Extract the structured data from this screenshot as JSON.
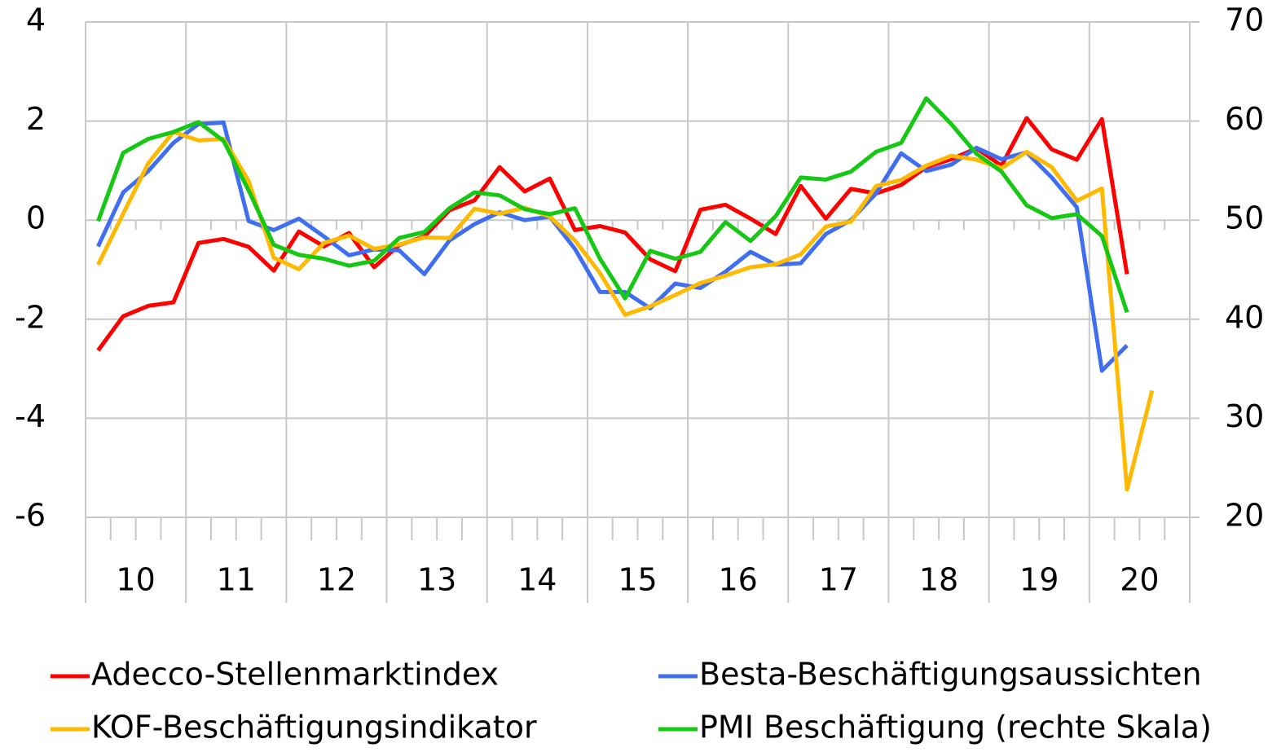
{
  "chart_data": {
    "type": "line",
    "x_labels": [
      "10",
      "11",
      "12",
      "13",
      "14",
      "15",
      "16",
      "17",
      "18",
      "19",
      "20"
    ],
    "ylim": [
      -6,
      4
    ],
    "yticks": [
      -6,
      -4,
      -2,
      0,
      2,
      4
    ],
    "y2lim": [
      20,
      70
    ],
    "y2ticks": [
      20,
      30,
      40,
      50,
      60,
      70
    ],
    "grid": true,
    "legend": "bottom",
    "series": [
      {
        "name": "Adecco-Stellenmarktindex",
        "color": "#ff0000",
        "values": [
          -2.63,
          -1.94,
          -1.73,
          -1.66,
          -0.46,
          -0.38,
          -0.54,
          -1.02,
          -0.23,
          -0.53,
          -0.26,
          -0.95,
          -0.5,
          -0.33,
          0.2,
          0.4,
          1.07,
          0.58,
          0.84,
          -0.2,
          -0.12,
          -0.25,
          -0.79,
          -1.03,
          0.21,
          0.31,
          0.03,
          -0.28,
          0.69,
          0.03,
          0.63,
          0.54,
          0.71,
          1.07,
          1.23,
          1.45,
          1.1,
          2.06,
          1.43,
          1.22,
          2.04,
          -1.09,
          null
        ]
      },
      {
        "name": "Besta-Beschäftigungsaussichten",
        "color": "#3f6ff0",
        "values": [
          -0.53,
          0.56,
          0.99,
          1.56,
          1.94,
          1.97,
          -0.02,
          -0.2,
          0.03,
          -0.33,
          -0.71,
          -0.59,
          -0.61,
          -1.09,
          -0.41,
          -0.08,
          0.16,
          0,
          0.07,
          -0.58,
          -1.45,
          -1.45,
          -1.78,
          -1.28,
          -1.37,
          -1.04,
          -0.64,
          -0.9,
          -0.87,
          -0.28,
          0,
          0.54,
          1.35,
          0.99,
          1.12,
          1.46,
          1.23,
          1.37,
          0.86,
          0.26,
          -3.04,
          -2.53,
          null
        ]
      },
      {
        "name": "KOF-Beschäftigungsindikator",
        "color": "#ffb900",
        "values": [
          -0.9,
          0.13,
          1.15,
          1.78,
          1.61,
          1.64,
          0.79,
          -0.76,
          -0.99,
          -0.46,
          -0.31,
          -0.58,
          -0.49,
          -0.35,
          -0.36,
          0.23,
          0.13,
          0.25,
          0.07,
          -0.41,
          -1.07,
          -1.91,
          -1.74,
          -1.51,
          -1.27,
          -1.12,
          -0.95,
          -0.89,
          -0.69,
          -0.13,
          -0.03,
          0.69,
          0.81,
          1.1,
          1.3,
          1.22,
          1.05,
          1.38,
          1.07,
          0.39,
          0.64,
          -5.44,
          -3.44
        ]
      },
      {
        "name": "PMI Beschäftigung (rechte Skala)",
        "color": "#14c814",
        "axis": "y2",
        "values": [
          49.9,
          56.8,
          58.2,
          58.9,
          59.9,
          58.0,
          53.0,
          47.5,
          46.5,
          46.1,
          45.4,
          45.9,
          48.2,
          48.8,
          51.2,
          52.8,
          52.5,
          51.1,
          50.6,
          51.2,
          46.1,
          42.1,
          46.9,
          46.1,
          46.8,
          49.8,
          47.9,
          50.4,
          54.3,
          54.1,
          54.9,
          56.9,
          57.8,
          62.3,
          59.7,
          56.7,
          54.9,
          51.5,
          50.2,
          50.6,
          48.4,
          40.7,
          null
        ]
      }
    ]
  }
}
